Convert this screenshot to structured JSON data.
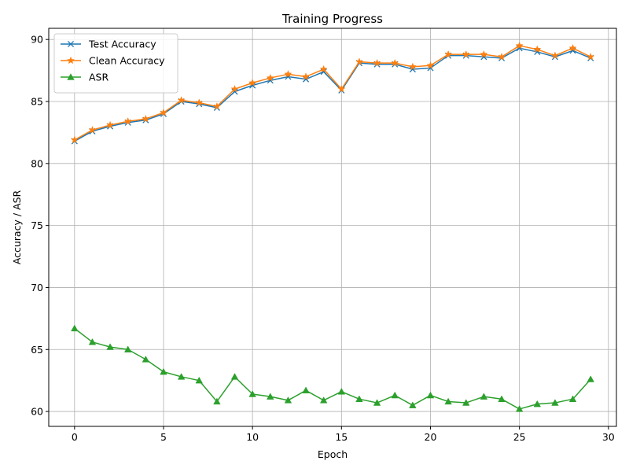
{
  "chart_data": {
    "type": "line",
    "title": "Training Progress",
    "xlabel": "Epoch",
    "ylabel": "Accuracy / ASR",
    "xlim": [
      -1.45,
      30.45
    ],
    "ylim": [
      58.8,
      90.9
    ],
    "xticks": [
      0,
      5,
      10,
      15,
      20,
      25,
      30
    ],
    "yticks": [
      60,
      65,
      70,
      75,
      80,
      85,
      90
    ],
    "grid": true,
    "legend_position": "upper-left",
    "x": [
      0,
      1,
      2,
      3,
      4,
      5,
      6,
      7,
      8,
      9,
      10,
      11,
      12,
      13,
      14,
      15,
      16,
      17,
      18,
      19,
      20,
      21,
      22,
      23,
      24,
      25,
      26,
      27,
      28,
      29
    ],
    "series": [
      {
        "name": "Test Accuracy",
        "color": "#1f77b4",
        "marker": "x",
        "values": [
          81.8,
          82.6,
          83.0,
          83.3,
          83.5,
          84.0,
          85.0,
          84.8,
          84.5,
          85.8,
          86.3,
          86.7,
          87.0,
          86.8,
          87.4,
          85.9,
          88.1,
          88.0,
          88.0,
          87.6,
          87.7,
          88.7,
          88.7,
          88.6,
          88.5,
          89.3,
          89.0,
          88.6,
          89.1,
          88.5
        ]
      },
      {
        "name": "Clean Accuracy",
        "color": "#ff7f0e",
        "marker": "star",
        "values": [
          81.9,
          82.7,
          83.1,
          83.4,
          83.6,
          84.1,
          85.1,
          84.9,
          84.6,
          86.0,
          86.5,
          86.9,
          87.2,
          87.0,
          87.6,
          86.0,
          88.2,
          88.1,
          88.1,
          87.8,
          87.9,
          88.8,
          88.8,
          88.8,
          88.6,
          89.5,
          89.2,
          88.7,
          89.3,
          88.6
        ]
      },
      {
        "name": "ASR",
        "color": "#2ca02c",
        "marker": "triangle",
        "values": [
          66.7,
          65.6,
          65.2,
          65.0,
          64.2,
          63.2,
          62.8,
          62.5,
          60.8,
          62.8,
          61.4,
          61.2,
          60.9,
          61.7,
          60.9,
          61.6,
          61.0,
          60.7,
          61.3,
          60.5,
          61.3,
          60.8,
          60.7,
          61.2,
          61.0,
          60.2,
          60.6,
          60.7,
          61.0,
          62.6
        ]
      }
    ]
  }
}
